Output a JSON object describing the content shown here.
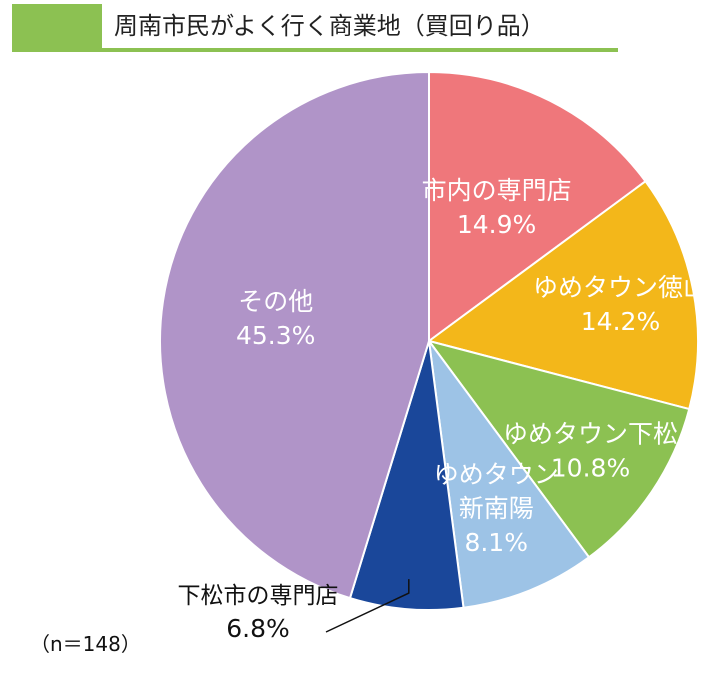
{
  "header": {
    "title": "周南市民がよく行く商業地（買回り品）",
    "accent_color": "#8cc152"
  },
  "note": "（n＝148）",
  "chart_data": {
    "type": "pie",
    "start_angle": "12 o'clock",
    "direction": "clockwise",
    "slices": [
      {
        "label": "市内の専門店",
        "value": 14.9,
        "value_label": "14.9%",
        "color": "#ef777b",
        "label_color": "#ffffff"
      },
      {
        "label": "ゆめタウン徳山",
        "value": 14.2,
        "value_label": "14.2%",
        "color": "#f3b71a",
        "label_color": "#ffffff"
      },
      {
        "label": "ゆめタウン下松",
        "value": 10.8,
        "value_label": "10.8%",
        "color": "#8cc152",
        "label_color": "#ffffff"
      },
      {
        "label": "ゆめタウン新南陽",
        "label_lines": [
          "ゆめタウン",
          "新南陽"
        ],
        "value": 8.1,
        "value_label": "8.1%",
        "color": "#9dc3e6",
        "label_color": "#ffffff"
      },
      {
        "label": "下松市の専門店",
        "value": 6.8,
        "value_label": "6.8%",
        "color": "#1a479a",
        "label_color": "#111111",
        "label_outside": true
      },
      {
        "label": "その他",
        "value": 45.3,
        "value_label": "45.3%",
        "color": "#b094c8",
        "label_color": "#ffffff"
      }
    ]
  }
}
